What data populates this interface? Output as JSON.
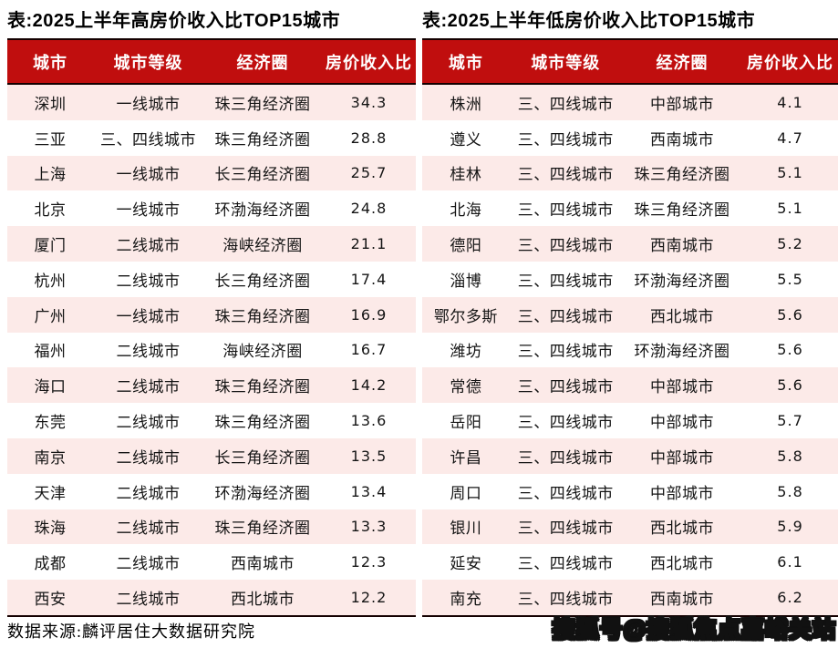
{
  "colors": {
    "header_bg": "#C00E0E",
    "header_text": "#FFFFFF",
    "row_stripe_bg": "#FCEAE8",
    "row_bg": "#FFFFFF",
    "body_text": "#141414",
    "border": "#140000"
  },
  "chart_data": [
    {
      "type": "table",
      "title": "表:2025上半年高房价收入比TOP15城市",
      "columns": [
        "城市",
        "城市等级",
        "经济圈",
        "房价收入比"
      ],
      "rows": [
        [
          "深圳",
          "一线城市",
          "珠三角经济圈",
          "34.3"
        ],
        [
          "三亚",
          "三、四线城市",
          "珠三角经济圈",
          "28.8"
        ],
        [
          "上海",
          "一线城市",
          "长三角经济圈",
          "25.7"
        ],
        [
          "北京",
          "一线城市",
          "环渤海经济圈",
          "24.8"
        ],
        [
          "厦门",
          "二线城市",
          "海峡经济圈",
          "21.1"
        ],
        [
          "杭州",
          "二线城市",
          "长三角经济圈",
          "17.4"
        ],
        [
          "广州",
          "一线城市",
          "珠三角经济圈",
          "16.9"
        ],
        [
          "福州",
          "二线城市",
          "海峡经济圈",
          "16.7"
        ],
        [
          "海口",
          "二线城市",
          "珠三角经济圈",
          "14.2"
        ],
        [
          "东莞",
          "二线城市",
          "珠三角经济圈",
          "13.6"
        ],
        [
          "南京",
          "二线城市",
          "长三角经济圈",
          "13.5"
        ],
        [
          "天津",
          "二线城市",
          "环渤海经济圈",
          "13.4"
        ],
        [
          "珠海",
          "二线城市",
          "珠三角经济圈",
          "13.3"
        ],
        [
          "成都",
          "二线城市",
          "西南城市",
          "12.3"
        ],
        [
          "西安",
          "二线城市",
          "西北城市",
          "12.2"
        ]
      ]
    },
    {
      "type": "table",
      "title": "表:2025上半年低房价收入比TOP15城市",
      "columns": [
        "城市",
        "城市等级",
        "经济圈",
        "房价收入比"
      ],
      "rows": [
        [
          "株洲",
          "三、四线城市",
          "中部城市",
          "4.1"
        ],
        [
          "遵义",
          "三、四线城市",
          "西南城市",
          "4.7"
        ],
        [
          "桂林",
          "三、四线城市",
          "珠三角经济圈",
          "5.1"
        ],
        [
          "北海",
          "三、四线城市",
          "珠三角经济圈",
          "5.1"
        ],
        [
          "德阳",
          "三、四线城市",
          "西南城市",
          "5.2"
        ],
        [
          "淄博",
          "三、四线城市",
          "环渤海经济圈",
          "5.5"
        ],
        [
          "鄂尔多斯",
          "三、四线城市",
          "西北城市",
          "5.6"
        ],
        [
          "潍坊",
          "三、四线城市",
          "环渤海经济圈",
          "5.6"
        ],
        [
          "常德",
          "三、四线城市",
          "中部城市",
          "5.6"
        ],
        [
          "岳阳",
          "三、四线城市",
          "中部城市",
          "5.7"
        ],
        [
          "许昌",
          "三、四线城市",
          "中部城市",
          "5.8"
        ],
        [
          "周口",
          "三、四线城市",
          "中部城市",
          "5.8"
        ],
        [
          "银川",
          "三、四线城市",
          "西北城市",
          "5.9"
        ],
        [
          "延安",
          "三、四线城市",
          "西北城市",
          "6.1"
        ],
        [
          "南充",
          "三、四线城市",
          "西南城市",
          "6.2"
        ]
      ]
    }
  ],
  "footer": {
    "source": "数据来源:麟评居住大数据研究院",
    "watermark": "搜狐号@搜狐焦点嘉峪关站"
  }
}
